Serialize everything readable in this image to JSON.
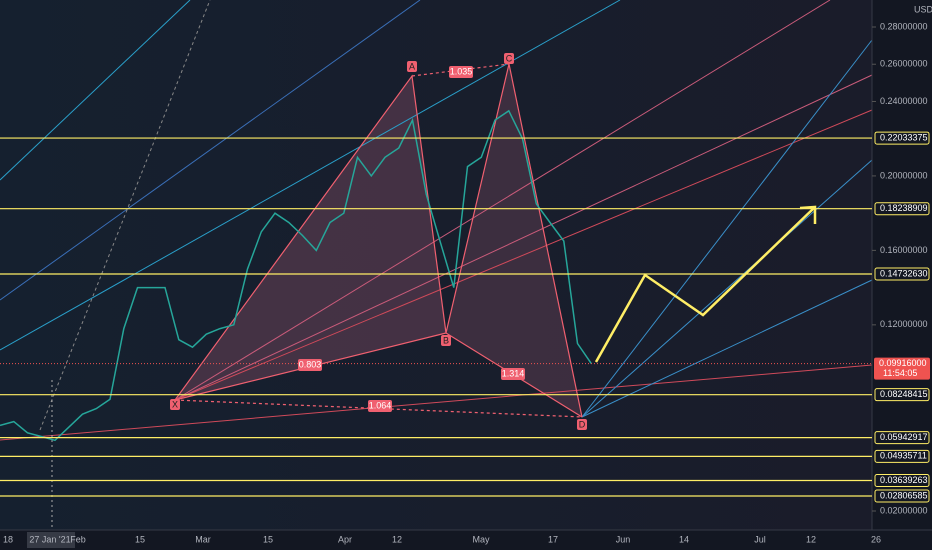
{
  "currency": "USD",
  "price_axis": {
    "ylim": [
      0.02,
      0.28
    ],
    "ticks": [
      {
        "value": 0.28,
        "label": "0.28000000"
      },
      {
        "value": 0.26,
        "label": "0.26000000"
      },
      {
        "value": 0.24,
        "label": "0.24000000"
      },
      {
        "value": 0.2,
        "label": "0.20000000"
      },
      {
        "value": 0.16,
        "label": "0.16000000"
      },
      {
        "value": 0.12,
        "label": "0.12000000"
      },
      {
        "value": 0.02,
        "label": "0.02000000"
      }
    ]
  },
  "levels": [
    {
      "value": 0.22033375,
      "label": "0.22033375"
    },
    {
      "value": 0.18238909,
      "label": "0.18238909"
    },
    {
      "value": 0.1473263,
      "label": "0.14732630"
    },
    {
      "value": 0.08248415,
      "label": "0.08248415"
    },
    {
      "value": 0.05942917,
      "label": "0.05942917"
    },
    {
      "value": 0.04935711,
      "label": "0.04935711"
    },
    {
      "value": 0.03639263,
      "label": "0.03639263"
    },
    {
      "value": 0.02806585,
      "label": "0.02806585"
    }
  ],
  "current_price": {
    "value": 0.09916,
    "label": "0.09916000",
    "countdown": "11:54:05"
  },
  "price_line": {
    "color": "#26a69a",
    "values": [
      0.066,
      0.068,
      0.062,
      0.06,
      0.058,
      0.065,
      0.072,
      0.075,
      0.08,
      0.118,
      0.14,
      0.14,
      0.14,
      0.112,
      0.108,
      0.115,
      0.118,
      0.12,
      0.15,
      0.17,
      0.18,
      0.175,
      0.168,
      0.16,
      0.175,
      0.18,
      0.21,
      0.2,
      0.21,
      0.215,
      0.23,
      0.19,
      0.165,
      0.14,
      0.205,
      0.21,
      0.23,
      0.235,
      0.22,
      0.185,
      0.175,
      0.165,
      0.11,
      0.0992
    ]
  },
  "time_axis": [
    "18",
    "27 Jan '21",
    "Feb",
    "15",
    "Mar",
    "15",
    "Apr",
    "12",
    "May",
    "17",
    "Jun",
    "14",
    "Jul",
    "12",
    "26"
  ],
  "pattern": {
    "points": [
      "X",
      "A",
      "B",
      "C",
      "D"
    ],
    "ratios": [
      "1.035",
      "0.803",
      "1.314",
      "1.064"
    ]
  }
}
